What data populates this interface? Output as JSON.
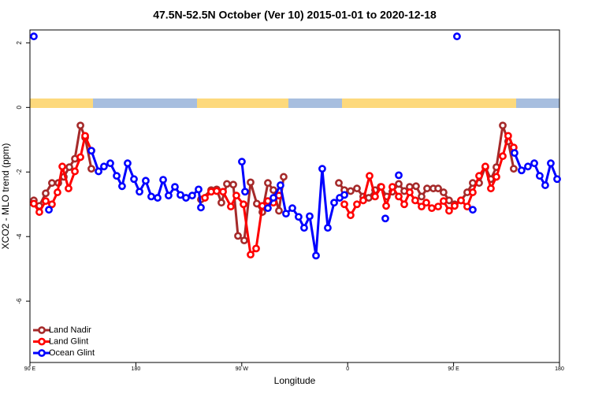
{
  "chart_data": {
    "type": "line",
    "title": "47.5N-52.5N October (Ver 10)   2015-01-01 to 2020-12-18",
    "xlabel": "Longitude",
    "ylabel": "XCO2 - MLO trend (ppm)",
    "xlim": [
      90,
      540
    ],
    "xticks": [
      {
        "value": 90,
        "label": "90 E"
      },
      180,
      {
        "value": 270,
        "label": "90 W"
      },
      {
        "value": 360,
        "label": "0"
      },
      {
        "value": 450,
        "label": "90 E"
      },
      {
        "value": 540,
        "label": "180"
      }
    ],
    "ylim": [
      -7.9,
      2.4
    ],
    "yticks": [
      2,
      0,
      -2,
      -4,
      -6
    ],
    "grid": false,
    "legend": "bottom-left",
    "series": [
      {
        "name": "Land Nadir",
        "color": "#a52a2a",
        "x": [
          93.3,
          98.0,
          103.4,
          108.7,
          114.1,
          118.8,
          123.5,
          128.2,
          132.9,
          136.9,
          142.2,
          null,
          235.3,
          244.0,
          248.7,
          252.7,
          257.4,
          262.8,
          266.8,
          272.1,
          277.5,
          282.8,
          287.5,
          292.2,
          296.9,
          301.6,
          305.6,
          null,
          352.5,
          357.2,
          362.5,
          367.9,
          373.2,
          377.9,
          383.3,
          388.0,
          393.3,
          398.0,
          403.4,
          408.1,
          412.7,
          418.1,
          422.8,
          427.5,
          432.8,
          436.9,
          441.5,
          446.2,
          450.9,
          456.3,
          461.6,
          466.3,
          471.7,
          477.0,
          481.7,
          486.4,
          491.8,
          496.4,
          501.1
        ],
        "values": [
          -2.88,
          -3.05,
          -2.66,
          -2.34,
          -2.34,
          -2.15,
          -1.85,
          -1.59,
          -0.56,
          -0.93,
          -1.9,
          null,
          -2.85,
          -2.56,
          -2.54,
          -2.95,
          -2.37,
          -2.39,
          -3.98,
          -4.12,
          -2.32,
          -2.98,
          -3.24,
          -2.34,
          -2.56,
          -3.2,
          -2.15,
          null,
          -2.34,
          -2.56,
          -2.59,
          -2.51,
          -2.76,
          -2.8,
          -2.56,
          -2.46,
          -2.76,
          -2.61,
          -2.37,
          -2.59,
          -2.46,
          -2.44,
          -2.76,
          -2.51,
          -2.51,
          -2.51,
          -2.63,
          -2.88,
          -3.0,
          -2.88,
          -2.63,
          -2.34,
          -2.34,
          -1.85,
          -2.22,
          -1.85,
          -0.56,
          -1.05,
          -1.9
        ]
      },
      {
        "name": "Land Glint",
        "color": "#ff0000",
        "x": [
          93.3,
          98.0,
          103.4,
          108.7,
          113.4,
          117.5,
          122.8,
          128.2,
          132.9,
          136.9,
          142.2,
          null,
          238.7,
          244.0,
          248.7,
          254.1,
          260.7,
          265.4,
          271.5,
          277.5,
          282.2,
          287.5,
          292.2,
          296.9,
          301.6,
          null,
          357.2,
          362.5,
          367.9,
          373.2,
          378.6,
          383.3,
          388.6,
          392.7,
          398.0,
          403.4,
          408.1,
          412.7,
          417.4,
          422.8,
          426.8,
          431.5,
          436.9,
          441.5,
          446.2,
          450.9,
          456.3,
          461.6,
          466.3,
          471.7,
          477.0,
          481.7,
          486.4,
          491.8,
          496.4,
          501.1
        ],
        "values": [
          -2.98,
          -3.24,
          -2.9,
          -3.0,
          -2.63,
          -1.83,
          -2.51,
          -1.98,
          -1.54,
          -0.88,
          -1.34,
          null,
          -2.8,
          -2.61,
          -2.59,
          -2.61,
          -3.07,
          -2.73,
          -3.0,
          -4.56,
          -4.37,
          -3.05,
          -2.9,
          -2.95,
          -2.73,
          null,
          -3.0,
          -3.34,
          -3.0,
          -2.88,
          -2.12,
          -2.76,
          -2.46,
          -3.05,
          -2.46,
          -2.76,
          -3.0,
          -2.63,
          -2.88,
          -3.07,
          -2.95,
          -3.12,
          -3.07,
          -2.9,
          -3.2,
          -3.05,
          -2.88,
          -3.07,
          -2.63,
          -2.12,
          -1.83,
          -2.51,
          -2.15,
          -1.51,
          -0.88,
          -1.24
        ]
      },
      {
        "name": "Ocean Glint",
        "color": "#0000ff",
        "x": [
          93.3,
          null,
          106.1,
          null,
          142.2,
          148.3,
          152.9,
          158.3,
          163.7,
          168.3,
          173.0,
          178.4,
          183.1,
          188.4,
          193.1,
          198.5,
          203.2,
          207.8,
          213.2,
          217.9,
          222.6,
          227.9,
          233.3,
          235.3,
          null,
          270.1,
          272.8,
          null,
          292.2,
          296.9,
          302.9,
          307.6,
          313.0,
          318.3,
          323.0,
          327.7,
          333.1,
          338.4,
          343.1,
          348.5,
          353.2,
          357.2,
          null,
          392.0,
          null,
          403.4,
          null,
          452.9,
          null,
          466.3,
          null,
          501.8,
          507.8,
          513.2,
          518.6,
          523.2,
          527.9,
          532.6,
          538.0
        ],
        "values": [
          2.2,
          null,
          -3.17,
          null,
          -1.34,
          -1.98,
          -1.83,
          -1.73,
          -2.12,
          -2.44,
          -1.73,
          -2.22,
          -2.61,
          -2.27,
          -2.76,
          -2.8,
          -2.24,
          -2.73,
          -2.46,
          -2.71,
          -2.8,
          -2.73,
          -2.54,
          -3.1,
          null,
          -1.68,
          -2.61,
          null,
          -3.12,
          -2.8,
          -2.41,
          -3.29,
          -3.12,
          -3.39,
          -3.73,
          -3.37,
          -4.59,
          -1.9,
          -3.73,
          -2.95,
          -2.8,
          -2.71,
          null,
          -3.44,
          null,
          -2.1,
          null,
          2.2,
          null,
          -3.17,
          null,
          -1.41,
          -1.95,
          -1.83,
          -1.73,
          -2.12,
          -2.41,
          -1.73,
          -2.22
        ]
      }
    ]
  }
}
